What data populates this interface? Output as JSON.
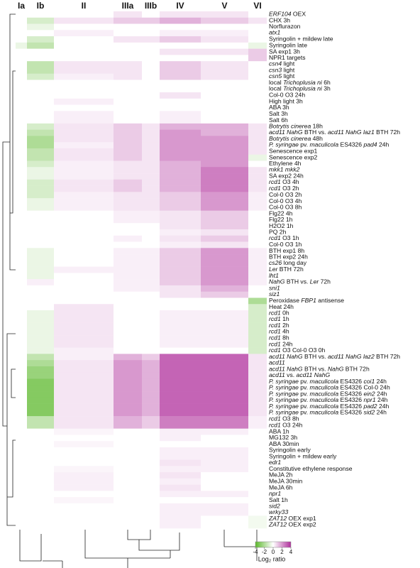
{
  "chart_data": {
    "type": "heatmap",
    "columns": [
      "Ia",
      "Ib",
      "II",
      "IIIa",
      "IIIb",
      "IV",
      "V",
      "VI"
    ],
    "rows": [
      [
        {
          "italic": "ERF104"
        },
        " OEX"
      ],
      "CHX 3h",
      "Norflurazon",
      [
        {
          "italic": "atx1"
        }
      ],
      "Syringolin + mildew late",
      "Syringolin late",
      "SA exp1 3h",
      "NPR1 targets",
      [
        {
          "italic": "csn4"
        },
        " light"
      ],
      [
        {
          "italic": "csn3"
        },
        " light"
      ],
      [
        {
          "italic": "csn5"
        },
        " light"
      ],
      [
        "local ",
        {
          "italic": "Trichoplusia ni"
        },
        " 6h"
      ],
      [
        "local ",
        {
          "italic": "Trichoplusia ni"
        },
        " 3h"
      ],
      "Col-0 O3 24h",
      "High light 3h",
      "ABA 3h",
      "Salt 3h",
      "Salt 6h",
      [
        {
          "italic": "Botrytis cinerea"
        },
        " 18h"
      ],
      [
        {
          "italic": "acd11 NahG"
        },
        " BTH vs. ",
        {
          "italic": "acd11 NahG laz1"
        },
        " BTH 72h"
      ],
      [
        {
          "italic": "Botrytis cinerea"
        },
        " 48h"
      ],
      [
        {
          "italic": "P. syringae"
        },
        " pv. ",
        {
          "italic": "maculicola"
        },
        " ES4326 ",
        {
          "italic": "pad4"
        },
        " 24h"
      ],
      "Senescence exp1",
      "Senescence exp2",
      "Ethylene 4h",
      [
        {
          "italic": "mkk1 mkk2"
        }
      ],
      "SA exp2 24h",
      [
        {
          "italic": "rcd1"
        },
        " O3 4h"
      ],
      [
        {
          "italic": "rcd1"
        },
        " O3 2h"
      ],
      "Col-0 O3 2h",
      "Col-0 O3 4h",
      "Col-0 O3 8h",
      "Flg22 4h",
      "Flg22 1h",
      "H2O2 1h",
      "PQ 2h",
      [
        {
          "italic": "rcd1"
        },
        " O3 1h"
      ],
      "Col-0 O3 1h",
      "BTH exp1 8h",
      "BTH exp2 24h",
      [
        {
          "italic": "cs26"
        },
        " long day"
      ],
      [
        {
          "italic": "Ler"
        },
        " BTH 72h"
      ],
      [
        {
          "italic": "lht1"
        }
      ],
      [
        {
          "italic": "NahG"
        },
        " BTH vs. ",
        {
          "italic": "Ler"
        },
        " 72h"
      ],
      [
        {
          "italic": "sni1"
        }
      ],
      [
        {
          "italic": "siz1"
        }
      ],
      [
        "Peroxidase ",
        {
          "italic": "FBP1"
        },
        " antisense"
      ],
      "Heat 24h",
      [
        {
          "italic": "rcd1"
        },
        " 0h"
      ],
      [
        {
          "italic": "rcd1"
        },
        " 1h"
      ],
      [
        {
          "italic": "rcd1"
        },
        " 2h"
      ],
      [
        {
          "italic": "rcd1"
        },
        " 4h"
      ],
      [
        {
          "italic": "rcd1"
        },
        " 8h"
      ],
      [
        {
          "italic": "rcd1"
        },
        " 24h"
      ],
      [
        {
          "italic": "rcd1"
        },
        " O3 Col-0 O3 0h"
      ],
      [
        {
          "italic": "acd11 NahG"
        },
        " BTH vs. ",
        {
          "italic": "acd11 NahG laz2"
        },
        " BTH 72h"
      ],
      [
        {
          "italic": "acd11"
        }
      ],
      [
        {
          "italic": "acd11 NahG"
        },
        " BTH vs. ",
        {
          "italic": "NahG"
        },
        " BTH 72h"
      ],
      [
        {
          "italic": "acd11"
        },
        " vs. ",
        {
          "italic": "acd11 NahG"
        }
      ],
      [
        {
          "italic": "P. syringae"
        },
        " pv. ",
        {
          "italic": "maculicola"
        },
        " ES4326 ",
        {
          "italic": "coi1"
        },
        " 24h"
      ],
      [
        {
          "italic": "P. syringae"
        },
        " pv. ",
        {
          "italic": "maculicola"
        },
        " ES4326 Col-0 24h"
      ],
      [
        {
          "italic": "P. syringae"
        },
        " pv. ",
        {
          "italic": "maculicola"
        },
        " ES4326 ",
        {
          "italic": "ein2"
        },
        " 24h"
      ],
      [
        {
          "italic": "P. syringae"
        },
        " pv. ",
        {
          "italic": "maculicola"
        },
        " ES4326 ",
        {
          "italic": "npr1"
        },
        " 24h"
      ],
      [
        {
          "italic": "P. syringae"
        },
        " pv. ",
        {
          "italic": "maculicola"
        },
        " ES4326 ",
        {
          "italic": "pad2"
        },
        " 24h"
      ],
      [
        {
          "italic": "P. syringae"
        },
        " pv. ",
        {
          "italic": "maculicola"
        },
        " ES4326 ",
        {
          "italic": "sid2"
        },
        " 24h"
      ],
      [
        {
          "italic": "rcd1"
        },
        " O3 8h"
      ],
      [
        {
          "italic": "rcd1"
        },
        " O3 24h"
      ],
      "ABA 1h",
      "MG132 3h",
      "ABA 30min",
      "Syringolin early",
      "Syringolin + mildew early",
      [
        {
          "italic": "edr1"
        }
      ],
      "Constitutive ethylene response",
      "MeJA 2h",
      "MeJA 30min",
      "MeJA 6h",
      [
        {
          "italic": "npr1"
        }
      ],
      "Salt 1h",
      [
        {
          "italic": "sid2"
        }
      ],
      [
        {
          "italic": "wrky33"
        }
      ],
      [
        {
          "italic": "ZAT12"
        },
        " OEX exp1"
      ],
      [
        {
          "italic": "ZAT12"
        },
        " OEX exp2"
      ]
    ],
    "values": [
      [
        0,
        0,
        0,
        0.5,
        0,
        0.5,
        0.5,
        0
      ],
      [
        0,
        -1,
        0.5,
        1,
        1,
        1.5,
        1,
        0.5
      ],
      [
        0,
        -0.5,
        0,
        0,
        0,
        0,
        0,
        0
      ],
      [
        0,
        0,
        0.3,
        0,
        0,
        0.3,
        0.3,
        0
      ],
      [
        0,
        -1,
        0,
        0.5,
        0.5,
        1,
        0.5,
        0
      ],
      [
        -0.5,
        -1.5,
        0,
        0,
        0,
        0,
        0,
        -0.5
      ],
      [
        0,
        0,
        0,
        0,
        0,
        0.5,
        0.5,
        1
      ],
      [
        0,
        0,
        0,
        0,
        0,
        0,
        0,
        1
      ],
      [
        0,
        -1.5,
        0.5,
        0.5,
        0,
        1,
        0.5,
        0
      ],
      [
        0,
        -1.5,
        0.5,
        0.5,
        0,
        1,
        0.5,
        0
      ],
      [
        0,
        -1,
        0.3,
        0.5,
        0,
        1,
        0.5,
        0
      ],
      [
        0,
        0,
        0,
        0,
        0,
        0,
        0,
        0
      ],
      [
        0,
        0,
        0,
        0,
        0,
        0,
        0,
        0
      ],
      [
        0,
        0,
        0,
        0,
        0,
        0.5,
        0,
        0
      ],
      [
        0,
        0,
        0.3,
        0,
        0,
        0,
        0,
        0
      ],
      [
        0,
        0,
        0,
        0,
        0,
        0,
        0,
        0
      ],
      [
        0,
        0,
        0.3,
        0,
        0,
        0.3,
        0,
        0
      ],
      [
        0,
        0,
        0.3,
        0,
        0,
        0.3,
        0,
        0
      ],
      [
        0,
        -1,
        0.5,
        1,
        0.5,
        1.5,
        1.5,
        0.5
      ],
      [
        0,
        -1.5,
        0.5,
        1,
        0.5,
        2,
        1.5,
        0.5
      ],
      [
        0,
        -2,
        0.5,
        1,
        0.5,
        2,
        2,
        0.5
      ],
      [
        0,
        -2,
        0.3,
        1,
        0.5,
        2,
        2,
        0.5
      ],
      [
        0,
        -1.5,
        0.5,
        1,
        0.5,
        2,
        2,
        0.5
      ],
      [
        0,
        -1.5,
        0.5,
        1,
        0.5,
        2,
        2,
        -0.5
      ],
      [
        0,
        -1,
        0.3,
        0.5,
        0.5,
        1.5,
        2,
        0
      ],
      [
        0,
        -0.5,
        0.3,
        0.5,
        0.5,
        1.5,
        2.5,
        0.5
      ],
      [
        0,
        -0.5,
        0.3,
        0.5,
        0.5,
        1.5,
        2.5,
        0.5
      ],
      [
        0,
        -1,
        0.5,
        1,
        0.5,
        1.5,
        2.5,
        0.5
      ],
      [
        0,
        -1,
        0.5,
        1,
        0.5,
        1.5,
        2.5,
        0.5
      ],
      [
        0,
        -1,
        0.3,
        0.5,
        0.5,
        1,
        2,
        0.3
      ],
      [
        0,
        -0.5,
        0.3,
        0.5,
        0.5,
        1,
        2,
        0.3
      ],
      [
        0,
        -0.5,
        0.3,
        0.5,
        0.5,
        1,
        2,
        0.3
      ],
      [
        0,
        0,
        0,
        0.3,
        0.3,
        0.5,
        1,
        0
      ],
      [
        0,
        0,
        0,
        0.3,
        0.3,
        0.5,
        1,
        0
      ],
      [
        0,
        0,
        0,
        0,
        0,
        0.5,
        1,
        0
      ],
      [
        0,
        0,
        0,
        0,
        0,
        0.3,
        0.5,
        0
      ],
      [
        0,
        0,
        0,
        0.3,
        0,
        0.5,
        1,
        0
      ],
      [
        0,
        0,
        0,
        0,
        0,
        0.3,
        0.5,
        0
      ],
      [
        0,
        -0.5,
        0,
        0.3,
        0.3,
        1,
        2,
        0.3
      ],
      [
        0,
        -0.5,
        0,
        0.3,
        0.3,
        1,
        2,
        0.3
      ],
      [
        0,
        -0.5,
        0,
        0.3,
        0.3,
        1,
        2,
        0.3
      ],
      [
        0,
        -0.5,
        0.3,
        0.3,
        0.3,
        1,
        2,
        0.3
      ],
      [
        0,
        -0.5,
        0,
        0.3,
        0.3,
        1,
        2,
        0.3
      ],
      [
        0,
        0.3,
        0,
        0.3,
        0.3,
        1,
        2,
        0.3
      ],
      [
        0,
        0,
        0,
        0.3,
        0.3,
        0.5,
        1.5,
        0
      ],
      [
        0,
        0,
        0,
        0,
        0,
        0.5,
        1,
        0
      ],
      [
        0,
        0,
        0,
        0,
        0,
        0,
        0,
        -2
      ],
      [
        0,
        0,
        0.5,
        0,
        0,
        0,
        0,
        -1
      ],
      [
        0,
        -0.5,
        0.5,
        0,
        0,
        0.3,
        0.3,
        -1
      ],
      [
        0,
        -0.5,
        0.5,
        0,
        0,
        0.3,
        0.3,
        -1
      ],
      [
        0,
        -0.5,
        0.5,
        0,
        0,
        0.3,
        0.3,
        -1
      ],
      [
        0,
        -0.5,
        0.5,
        0,
        0,
        0.3,
        0.3,
        -1
      ],
      [
        0,
        -0.5,
        0.5,
        0,
        0,
        0.3,
        0.3,
        -1
      ],
      [
        0,
        -0.5,
        0.5,
        0,
        0,
        0.3,
        0.3,
        -1
      ],
      [
        0,
        -0.5,
        0.3,
        0,
        0,
        0,
        0,
        -1
      ],
      [
        0,
        -1.5,
        0.3,
        1.5,
        1,
        3,
        3,
        0.5
      ],
      [
        0,
        -2,
        0.5,
        2,
        1.5,
        3,
        3,
        0.5
      ],
      [
        0,
        -2.5,
        0.5,
        2,
        1.5,
        3,
        3,
        0.5
      ],
      [
        0,
        -2.5,
        0.5,
        2,
        1.5,
        3,
        3,
        0.5
      ],
      [
        0,
        -3,
        0.5,
        2,
        1.5,
        3,
        3,
        0.5
      ],
      [
        0,
        -3,
        0.5,
        2,
        1.5,
        3,
        3,
        0.5
      ],
      [
        0,
        -3,
        0.5,
        2,
        1.5,
        3,
        3,
        0.5
      ],
      [
        0,
        -3,
        0.5,
        2,
        1.5,
        3,
        3,
        0.5
      ],
      [
        0,
        -3,
        0.5,
        2,
        1.5,
        3,
        3,
        0.5
      ],
      [
        0,
        -3,
        0.5,
        2,
        1.5,
        3,
        3,
        0.5
      ],
      [
        0,
        -1.5,
        0.5,
        1.5,
        1,
        2.5,
        2.5,
        0.3
      ],
      [
        0,
        -1.5,
        0.5,
        1.5,
        1,
        2.5,
        2.5,
        0.3
      ],
      [
        0,
        0,
        0.2,
        0,
        0,
        0.3,
        0.3,
        0
      ],
      [
        0,
        0,
        0,
        0,
        0,
        0.3,
        0,
        0
      ],
      [
        0,
        0,
        0.2,
        0,
        0,
        0,
        0,
        0
      ],
      [
        0,
        0,
        0,
        0,
        0,
        0.3,
        0.3,
        0
      ],
      [
        0,
        0,
        0,
        0,
        0,
        0.3,
        0.3,
        0
      ],
      [
        0,
        0,
        0,
        0,
        0,
        0.5,
        0.3,
        0
      ],
      [
        0,
        0,
        0.2,
        0,
        0,
        0.3,
        0.3,
        0
      ],
      [
        0,
        0,
        0.3,
        0,
        0,
        0.5,
        0,
        0
      ],
      [
        0,
        0,
        0.3,
        0,
        0,
        0.3,
        0,
        0
      ],
      [
        0,
        0,
        0.3,
        0,
        0,
        0.5,
        0,
        0
      ],
      [
        0,
        0,
        0,
        0,
        0,
        0.3,
        0.3,
        0
      ],
      [
        0,
        0,
        0.2,
        0,
        0,
        0,
        0,
        0
      ],
      [
        0,
        0,
        0,
        0,
        0,
        0.3,
        0.3,
        0
      ],
      [
        0,
        0,
        0,
        0,
        0,
        0.3,
        0.3,
        0
      ],
      [
        0,
        0,
        0,
        0,
        0,
        0.3,
        0,
        -0.3
      ],
      [
        0,
        0,
        0,
        0,
        0,
        0.3,
        0,
        -0.3
      ]
    ],
    "colorbar": {
      "lim": [
        -4,
        4
      ],
      "ticks": [
        -4,
        -2,
        0,
        2,
        4
      ],
      "low_color": "#5cb82c",
      "mid_color": "#ffffff",
      "high_color": "#b0309c",
      "label": "Log₂ ratio"
    }
  }
}
